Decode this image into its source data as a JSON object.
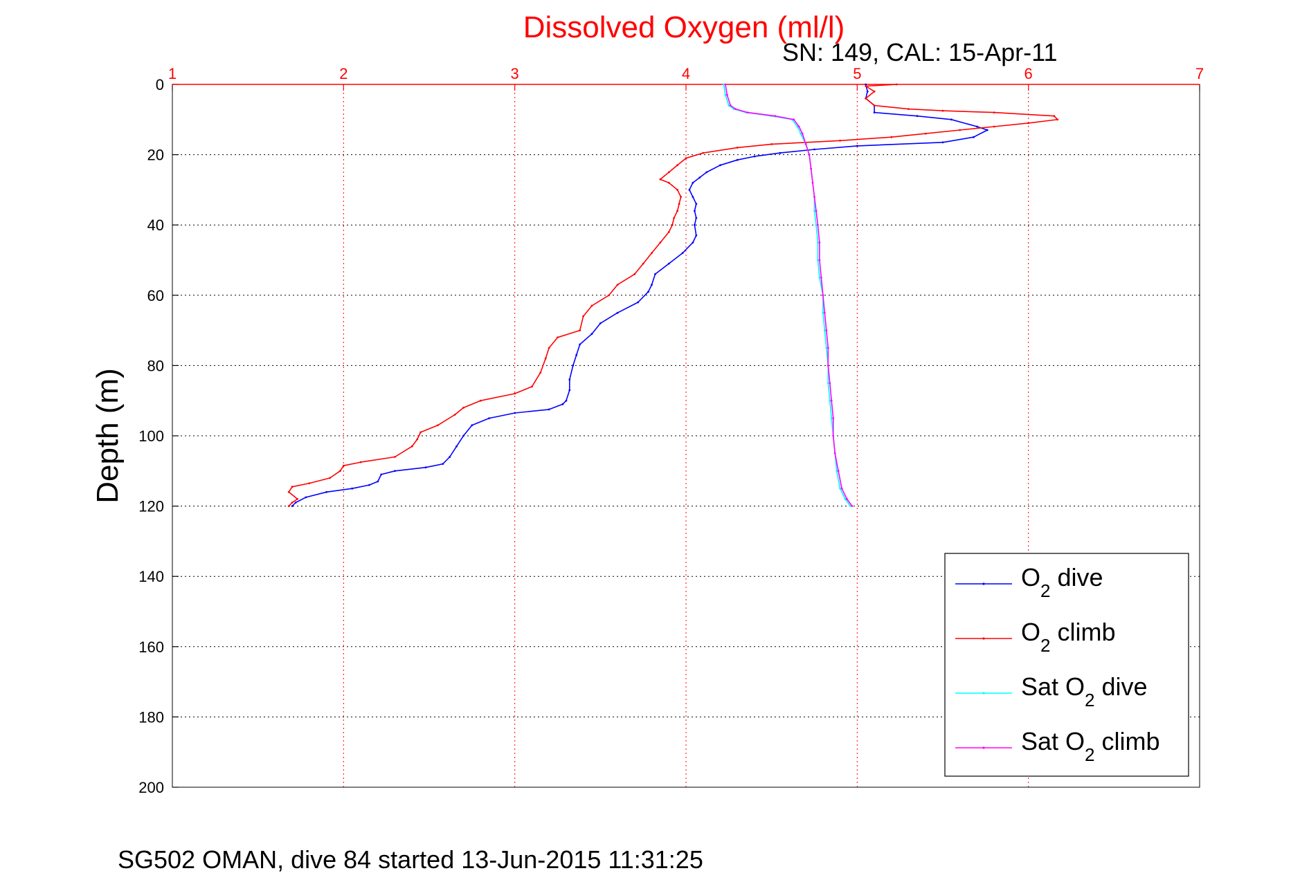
{
  "chart_data": {
    "type": "line",
    "title": "Dissolved Oxygen (ml/l)",
    "subtitle": "SN: 149, CAL: 15-Apr-11",
    "ylabel": "Depth (m)",
    "footer": "SG502 OMAN, dive 84 started 13-Jun-2015 11:31:25",
    "xlim": [
      1,
      7
    ],
    "ylim": [
      0,
      200
    ],
    "y_reversed": true,
    "x_axis_position": "top",
    "x_ticks": [
      "1",
      "2",
      "3",
      "4",
      "5",
      "6",
      "7"
    ],
    "y_ticks": [
      "0",
      "20",
      "40",
      "60",
      "80",
      "100",
      "120",
      "140",
      "160",
      "180",
      "200"
    ],
    "grid": true,
    "legend_position": "bottom-right",
    "legend": [
      {
        "main": "O",
        "sub": "2",
        "rest": " dive",
        "color": "#0000ff"
      },
      {
        "main": "O",
        "sub": "2",
        "rest": " climb",
        "color": "#ff0000"
      },
      {
        "main": "Sat O",
        "sub": "2",
        "rest": " dive",
        "color": "#00ffff"
      },
      {
        "main": "Sat O",
        "sub": "2",
        "rest": " climb",
        "color": "#ff00ff"
      }
    ],
    "series": [
      {
        "color": "#0000ff",
        "points": [
          [
            5.05,
            0
          ],
          [
            5.06,
            2
          ],
          [
            5.05,
            4
          ],
          [
            5.1,
            6
          ],
          [
            5.1,
            8
          ],
          [
            5.35,
            9
          ],
          [
            5.55,
            10
          ],
          [
            5.7,
            12
          ],
          [
            5.76,
            13
          ],
          [
            5.68,
            15
          ],
          [
            5.5,
            16.5
          ],
          [
            5.0,
            17.5
          ],
          [
            4.75,
            18.5
          ],
          [
            4.55,
            19.5
          ],
          [
            4.4,
            20.5
          ],
          [
            4.3,
            21.5
          ],
          [
            4.2,
            23
          ],
          [
            4.12,
            25
          ],
          [
            4.08,
            26.5
          ],
          [
            4.04,
            28
          ],
          [
            4.02,
            30
          ],
          [
            4.04,
            32
          ],
          [
            4.06,
            34
          ],
          [
            4.05,
            36
          ],
          [
            4.06,
            38
          ],
          [
            4.05,
            40
          ],
          [
            4.06,
            43
          ],
          [
            4.04,
            45
          ],
          [
            3.98,
            48
          ],
          [
            3.9,
            51
          ],
          [
            3.82,
            54
          ],
          [
            3.8,
            57
          ],
          [
            3.78,
            59
          ],
          [
            3.72,
            62
          ],
          [
            3.6,
            65
          ],
          [
            3.5,
            68
          ],
          [
            3.45,
            71
          ],
          [
            3.38,
            74
          ],
          [
            3.36,
            77
          ],
          [
            3.34,
            80
          ],
          [
            3.32,
            84
          ],
          [
            3.32,
            87
          ],
          [
            3.3,
            90
          ],
          [
            3.28,
            91
          ],
          [
            3.2,
            92.5
          ],
          [
            3.0,
            93.5
          ],
          [
            2.85,
            95
          ],
          [
            2.75,
            97
          ],
          [
            2.7,
            100
          ],
          [
            2.66,
            103
          ],
          [
            2.62,
            106
          ],
          [
            2.58,
            108
          ],
          [
            2.48,
            109
          ],
          [
            2.3,
            110
          ],
          [
            2.22,
            111
          ],
          [
            2.2,
            113
          ],
          [
            2.15,
            114
          ],
          [
            2.05,
            115
          ],
          [
            1.9,
            116
          ],
          [
            1.78,
            117.5
          ],
          [
            1.72,
            119
          ],
          [
            1.7,
            120
          ]
        ]
      },
      {
        "color": "#ff0000",
        "points": [
          [
            5.23,
            0
          ],
          [
            5.05,
            0.5
          ],
          [
            5.1,
            2
          ],
          [
            5.05,
            4
          ],
          [
            5.1,
            6
          ],
          [
            5.3,
            7
          ],
          [
            5.5,
            7.5
          ],
          [
            5.8,
            8
          ],
          [
            6.15,
            9
          ],
          [
            6.17,
            10
          ],
          [
            6.0,
            11
          ],
          [
            5.8,
            12
          ],
          [
            5.6,
            13
          ],
          [
            5.4,
            14
          ],
          [
            5.2,
            15
          ],
          [
            4.9,
            16
          ],
          [
            4.5,
            17
          ],
          [
            4.3,
            18
          ],
          [
            4.1,
            19.5
          ],
          [
            4.0,
            21
          ],
          [
            3.95,
            23
          ],
          [
            3.9,
            25
          ],
          [
            3.85,
            27
          ],
          [
            3.9,
            28
          ],
          [
            3.95,
            30
          ],
          [
            3.97,
            32
          ],
          [
            3.96,
            34
          ],
          [
            3.95,
            36
          ],
          [
            3.93,
            38
          ],
          [
            3.92,
            40
          ],
          [
            3.9,
            42
          ],
          [
            3.85,
            45
          ],
          [
            3.8,
            48
          ],
          [
            3.75,
            51
          ],
          [
            3.7,
            54
          ],
          [
            3.6,
            57
          ],
          [
            3.55,
            60
          ],
          [
            3.45,
            63
          ],
          [
            3.4,
            66
          ],
          [
            3.38,
            70
          ],
          [
            3.25,
            72
          ],
          [
            3.2,
            75
          ],
          [
            3.18,
            78
          ],
          [
            3.15,
            82
          ],
          [
            3.1,
            86
          ],
          [
            3.0,
            88
          ],
          [
            2.8,
            90
          ],
          [
            2.7,
            92
          ],
          [
            2.65,
            94
          ],
          [
            2.55,
            97
          ],
          [
            2.45,
            99
          ],
          [
            2.43,
            101
          ],
          [
            2.4,
            103
          ],
          [
            2.3,
            106
          ],
          [
            2.1,
            107.5
          ],
          [
            2.0,
            108.5
          ],
          [
            1.98,
            110
          ],
          [
            1.92,
            112
          ],
          [
            1.8,
            113.5
          ],
          [
            1.7,
            114.5
          ],
          [
            1.68,
            116
          ],
          [
            1.73,
            118
          ],
          [
            1.7,
            119
          ],
          [
            1.68,
            120
          ]
        ]
      },
      {
        "color": "#00ffff",
        "points": [
          [
            4.22,
            0
          ],
          [
            4.23,
            3
          ],
          [
            4.25,
            6
          ],
          [
            4.28,
            7
          ],
          [
            4.35,
            8
          ],
          [
            4.5,
            9
          ],
          [
            4.62,
            10
          ],
          [
            4.65,
            12
          ],
          [
            4.67,
            14
          ],
          [
            4.7,
            17
          ],
          [
            4.72,
            20
          ],
          [
            4.73,
            24
          ],
          [
            4.74,
            28
          ],
          [
            4.75,
            32
          ],
          [
            4.75,
            36
          ],
          [
            4.76,
            40
          ],
          [
            4.77,
            45
          ],
          [
            4.77,
            50
          ],
          [
            4.78,
            55
          ],
          [
            4.8,
            60
          ],
          [
            4.8,
            65
          ],
          [
            4.81,
            70
          ],
          [
            4.82,
            75
          ],
          [
            4.83,
            80
          ],
          [
            4.83,
            85
          ],
          [
            4.84,
            90
          ],
          [
            4.85,
            95
          ],
          [
            4.86,
            100
          ],
          [
            4.87,
            105
          ],
          [
            4.88,
            110
          ],
          [
            4.9,
            115
          ],
          [
            4.93,
            118
          ],
          [
            4.96,
            120
          ]
        ]
      },
      {
        "color": "#ff00ff",
        "points": [
          [
            4.23,
            0
          ],
          [
            4.24,
            3
          ],
          [
            4.26,
            6
          ],
          [
            4.29,
            7
          ],
          [
            4.36,
            8
          ],
          [
            4.52,
            9
          ],
          [
            4.63,
            10
          ],
          [
            4.66,
            12
          ],
          [
            4.68,
            14
          ],
          [
            4.7,
            17
          ],
          [
            4.72,
            20
          ],
          [
            4.73,
            24
          ],
          [
            4.74,
            28
          ],
          [
            4.75,
            32
          ],
          [
            4.76,
            36
          ],
          [
            4.77,
            40
          ],
          [
            4.78,
            45
          ],
          [
            4.78,
            50
          ],
          [
            4.79,
            55
          ],
          [
            4.8,
            60
          ],
          [
            4.81,
            65
          ],
          [
            4.82,
            70
          ],
          [
            4.83,
            75
          ],
          [
            4.83,
            80
          ],
          [
            4.84,
            85
          ],
          [
            4.85,
            90
          ],
          [
            4.86,
            95
          ],
          [
            4.86,
            100
          ],
          [
            4.87,
            105
          ],
          [
            4.89,
            110
          ],
          [
            4.91,
            115
          ],
          [
            4.94,
            118
          ],
          [
            4.97,
            120
          ]
        ]
      }
    ]
  }
}
